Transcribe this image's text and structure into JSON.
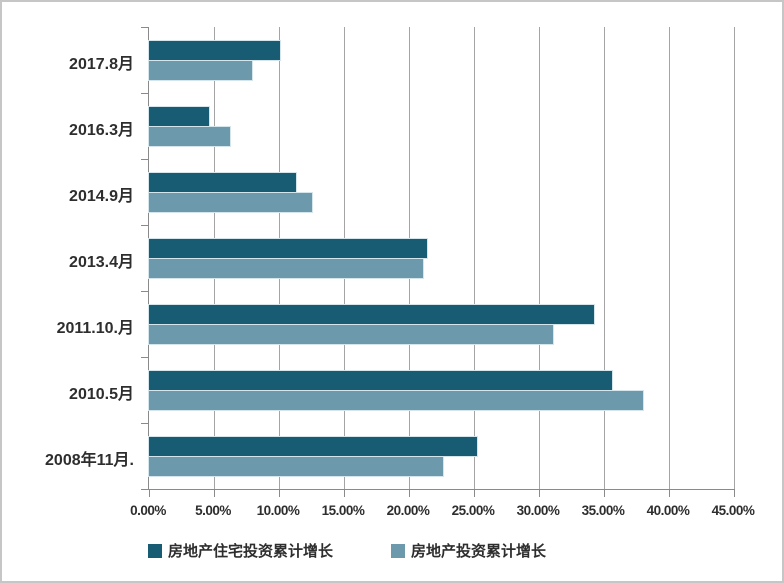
{
  "chart_data": {
    "type": "bar",
    "orientation": "horizontal",
    "title": "",
    "xlabel": "",
    "ylabel": "",
    "grid": true,
    "legend_position": "bottom",
    "categories": [
      "2017.8月",
      "2016.3月",
      "2014.9月",
      "2013.4月",
      "2011.10.月",
      "2010.5月",
      "2008年11月."
    ],
    "series": [
      {
        "name": "房地产住宅投资累计增长",
        "color": "#175c73",
        "values": [
          10.1,
          4.6,
          11.3,
          21.4,
          34.2,
          35.6,
          25.2
        ]
      },
      {
        "name": "房地产投资累计增长",
        "color": "#6d99ad",
        "values": [
          7.9,
          6.2,
          12.5,
          21.1,
          31.1,
          38.0,
          22.6
        ]
      }
    ],
    "x_axis": {
      "min": 0,
      "max": 45,
      "tick_step": 5,
      "tick_labels": [
        "0.00%",
        "5.00%",
        "10.00%",
        "15.00%",
        "20.00%",
        "25.00%",
        "30.00%",
        "35.00%",
        "40.00%",
        "45.00%"
      ],
      "unit": "%"
    },
    "colors": {
      "gridline": "#a4a4a4",
      "axis": "#8a8a8a",
      "text": "#2e2e2e",
      "frame_border": "#c6c6c6",
      "background": "#ffffff"
    }
  },
  "legend": {
    "series1_label": "房地产住宅投资累计增长",
    "series2_label": "房地产投资累计增长"
  }
}
